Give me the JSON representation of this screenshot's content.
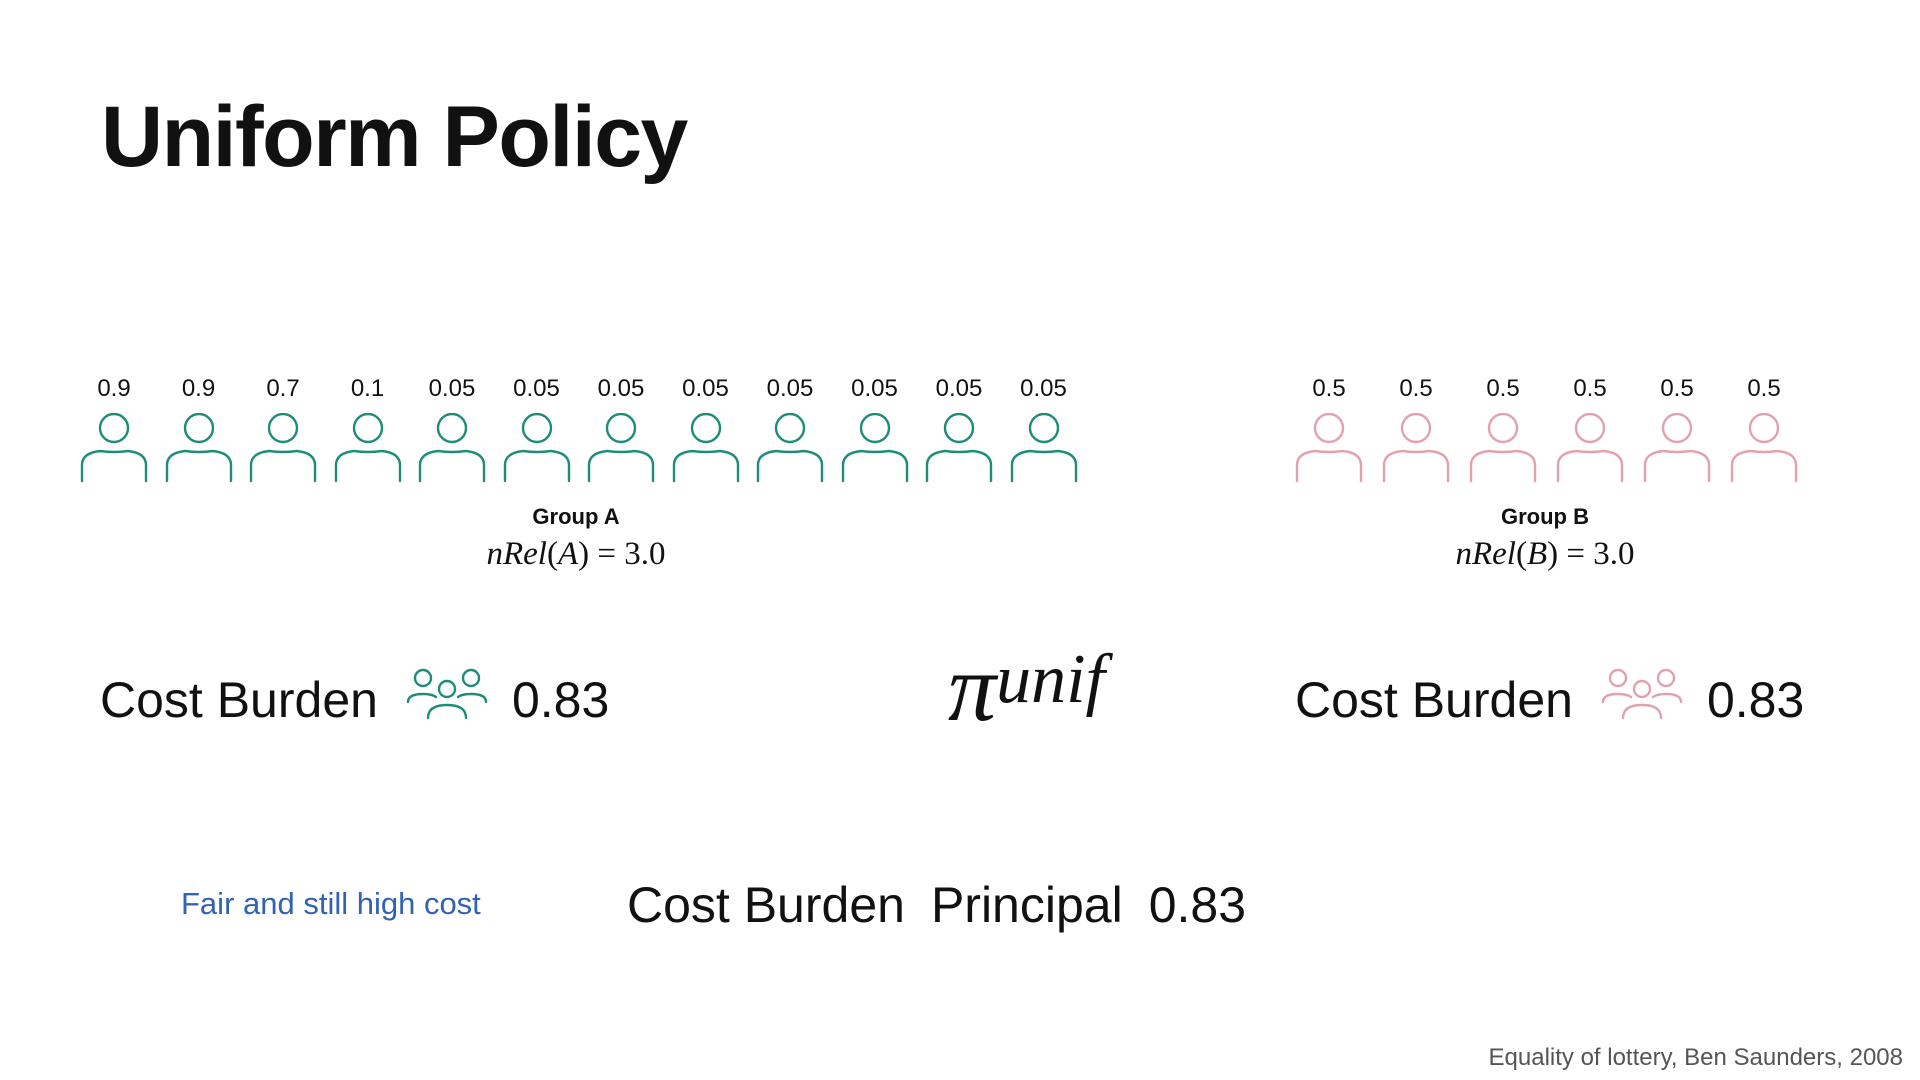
{
  "title": "Uniform Policy",
  "colors": {
    "group_a": "#1f8c7a",
    "group_b": "#e2a2ad",
    "note": "#3163b5"
  },
  "group_a": {
    "values": [
      "0.9",
      "0.9",
      "0.7",
      "0.1",
      "0.05",
      "0.05",
      "0.05",
      "0.05",
      "0.05",
      "0.05",
      "0.05",
      "0.05"
    ],
    "label": "Group A",
    "formula_lhs": "nRel",
    "formula_arg": "A",
    "formula_rhs": "3.0",
    "cost_label": "Cost Burden",
    "cost_icon": "group-people-icon",
    "cost_value": "0.83"
  },
  "group_b": {
    "values": [
      "0.5",
      "0.5",
      "0.5",
      "0.5",
      "0.5",
      "0.5"
    ],
    "label": "Group B",
    "formula_lhs": "nRel",
    "formula_arg": "B",
    "formula_rhs": "3.0",
    "cost_label": "Cost Burden",
    "cost_icon": "group-people-icon",
    "cost_value": "0.83"
  },
  "policy": {
    "symbol": "π",
    "superscript": "unif"
  },
  "note": "Fair and still high cost",
  "principal": {
    "label1": "Cost Burden",
    "label2": "Principal",
    "value": "0.83"
  },
  "citation": "Equality of lottery, Ben Saunders, 2008"
}
